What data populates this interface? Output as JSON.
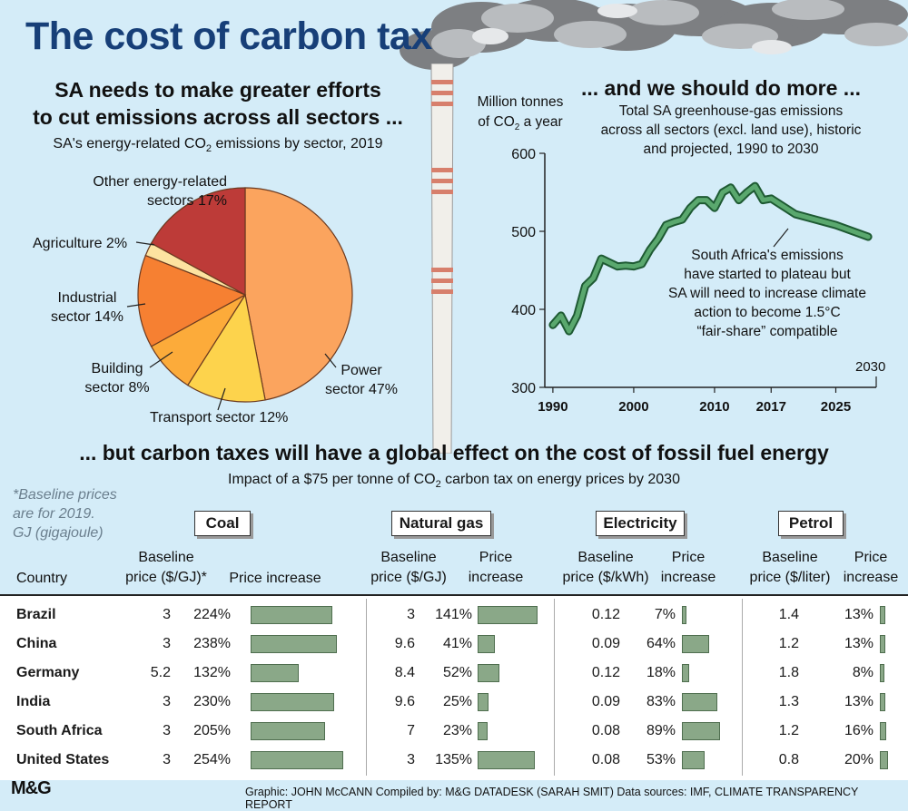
{
  "title": "The cost of carbon tax",
  "pie_section": {
    "headline_1": "SA needs to make greater efforts",
    "headline_2": "to cut emissions across all sectors ...",
    "subtitle_pre": "SA's energy-related CO",
    "subtitle_post": " emissions by sector, 2019"
  },
  "line_section": {
    "headline": "... and we should do more ...",
    "ylabel_1": "Million tonnes",
    "ylabel_2_pre": "of CO",
    "ylabel_2_post": " a year",
    "subtitle_1": "Total SA greenhouse-gas emissions",
    "subtitle_2": "across all sectors (excl. land use), historic",
    "subtitle_3": "and projected, 1990 to 2030",
    "annotation": [
      "South Africa's emissions",
      "have started to plateau but",
      "SA will need to increase climate",
      "action to become 1.5°C",
      "“fair-share” compatible"
    ],
    "end_label": "2030"
  },
  "table_section": {
    "headline": "... but carbon taxes will have a global effect on the cost of fossil fuel energy",
    "subtitle_pre": "Impact of a $75 per tonne of CO",
    "subtitle_post": " carbon tax on energy prices by 2030",
    "footnote": [
      "*Baseline prices",
      "are for 2019.",
      "GJ (gigajoule)"
    ],
    "country_header": "Country",
    "categories": [
      "Coal",
      "Natural gas",
      "Electricity",
      "Petrol"
    ],
    "baseline_headers": [
      [
        "Baseline",
        "price ($/GJ)*"
      ],
      [
        "Baseline",
        "price ($/GJ)"
      ],
      [
        "Baseline",
        "price ($/kWh)"
      ],
      [
        "Baseline",
        "price ($/liter)"
      ]
    ],
    "increase_headers": [
      [
        "Price increase"
      ],
      [
        "Price",
        "increase"
      ],
      [
        "Price",
        "increase"
      ],
      [
        "Price",
        "increase"
      ]
    ]
  },
  "footer": "Graphic: JOHN McCANN  Compiled by: M&G DATADESK (SARAH SMIT)  Data sources: IMF, CLIMATE TRANSPARENCY REPORT",
  "logo": "M&G",
  "colors": {
    "power": "#fba45e",
    "transport": "#fdd34c",
    "building": "#fcab3a",
    "industrial": "#f68032",
    "agriculture": "#fde3a0",
    "other": "#bd3b38",
    "line": "#3a8a56",
    "bar": "#8aa888"
  },
  "chart_data": [
    {
      "type": "pie",
      "title": "SA's energy-related CO2 emissions by sector, 2019",
      "slices": [
        {
          "label": "Power sector",
          "value": 47,
          "label_text": "Power sector 47%"
        },
        {
          "label": "Transport sector",
          "value": 12,
          "label_text": "Transport sector 12%"
        },
        {
          "label": "Building sector",
          "value": 8,
          "label_text": "Building sector 8%"
        },
        {
          "label": "Industrial sector",
          "value": 14,
          "label_text": "Industrial sector 14%"
        },
        {
          "label": "Agriculture",
          "value": 2,
          "label_text": "Agriculture 2%"
        },
        {
          "label": "Other energy-related sectors",
          "value": 17,
          "label_text": "Other energy-related sectors 17%"
        }
      ]
    },
    {
      "type": "line",
      "title": "Total SA greenhouse-gas emissions across all sectors (excl. land use), historic and projected, 1990 to 2030",
      "ylabel": "Million tonnes of CO2 a year",
      "ylim": [
        300,
        600
      ],
      "yticks": [
        300,
        400,
        500,
        600
      ],
      "xlim": [
        1989,
        2030
      ],
      "xticks": [
        1990,
        2000,
        2010,
        2017,
        2025
      ],
      "x": [
        1990,
        1991,
        1992,
        1993,
        1994,
        1995,
        1996,
        1997,
        1998,
        1999,
        2000,
        2001,
        2002,
        2003,
        2004,
        2005,
        2006,
        2007,
        2008,
        2009,
        2010,
        2011,
        2012,
        2013,
        2014,
        2015,
        2016,
        2017,
        2020,
        2025,
        2029
      ],
      "values": [
        380,
        392,
        372,
        392,
        430,
        440,
        465,
        460,
        455,
        456,
        455,
        458,
        476,
        490,
        508,
        512,
        515,
        530,
        540,
        540,
        530,
        550,
        556,
        540,
        550,
        558,
        540,
        542,
        522,
        508,
        493
      ]
    },
    {
      "type": "table",
      "title": "Impact of a $75 per tonne of CO2 carbon tax on energy prices by 2030",
      "columns": [
        "Country",
        "Coal baseline ($/GJ)",
        "Coal increase %",
        "Natural gas baseline ($/GJ)",
        "Natural gas increase %",
        "Electricity baseline ($/kWh)",
        "Electricity increase %",
        "Petrol baseline ($/liter)",
        "Petrol increase %"
      ],
      "rows": [
        {
          "country": "Brazil",
          "values": [
            [
              "3",
              224
            ],
            [
              "3",
              141
            ],
            [
              "0.12",
              7
            ],
            [
              "1.4",
              13
            ]
          ]
        },
        {
          "country": "China",
          "values": [
            [
              "3",
              238
            ],
            [
              "9.6",
              41
            ],
            [
              "0.09",
              64
            ],
            [
              "1.2",
              13
            ]
          ]
        },
        {
          "country": "Germany",
          "values": [
            [
              "5.2",
              132
            ],
            [
              "8.4",
              52
            ],
            [
              "0.12",
              18
            ],
            [
              "1.8",
              8
            ]
          ]
        },
        {
          "country": "India",
          "values": [
            [
              "3",
              230
            ],
            [
              "9.6",
              25
            ],
            [
              "0.09",
              83
            ],
            [
              "1.3",
              13
            ]
          ]
        },
        {
          "country": "South Africa",
          "values": [
            [
              "3",
              205
            ],
            [
              "7",
              23
            ],
            [
              "0.08",
              89
            ],
            [
              "1.2",
              16
            ]
          ]
        },
        {
          "country": "United States",
          "values": [
            [
              "3",
              254
            ],
            [
              "3",
              135
            ],
            [
              "0.08",
              53
            ],
            [
              "0.8",
              20
            ]
          ]
        }
      ]
    }
  ]
}
